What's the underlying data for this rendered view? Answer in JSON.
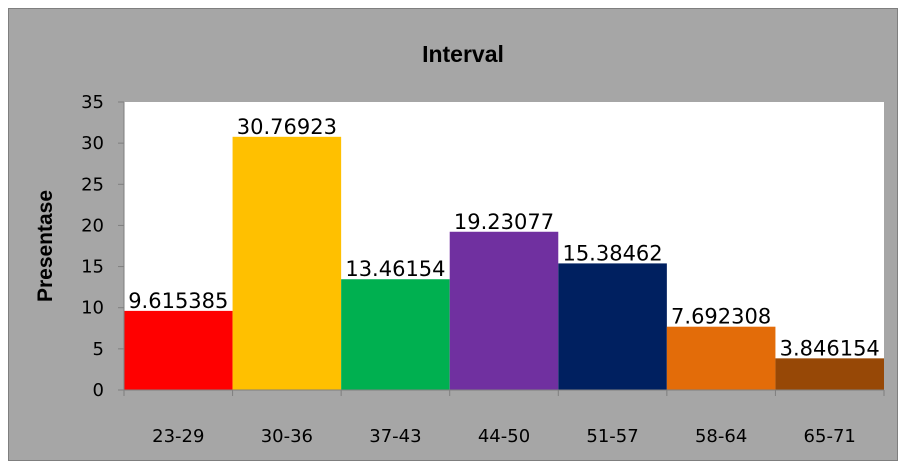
{
  "chart_data": {
    "type": "bar",
    "title": "Interval",
    "ylabel": "Presentase",
    "xlabel": "",
    "categories": [
      "23-29",
      "30-36",
      "37-43",
      "44-50",
      "51-57",
      "58-64",
      "65-71"
    ],
    "values": [
      9.615385,
      30.76923,
      13.46154,
      19.23077,
      15.38462,
      7.692308,
      3.846154
    ],
    "value_labels": [
      "9.615385",
      "30.76923",
      "13.46154",
      "19.23077",
      "15.38462",
      "7.692308",
      "3.846154"
    ],
    "colors": [
      "#ff0000",
      "#ffc000",
      "#00b050",
      "#7030a0",
      "#002060",
      "#e36c09",
      "#974806"
    ],
    "ylim": [
      0,
      35
    ],
    "yticks": [
      0,
      5,
      10,
      15,
      20,
      25,
      30,
      35
    ],
    "grid": false,
    "legend": "none",
    "background_color": "#a6a6a6",
    "plot_area_color": "#ffffff"
  }
}
